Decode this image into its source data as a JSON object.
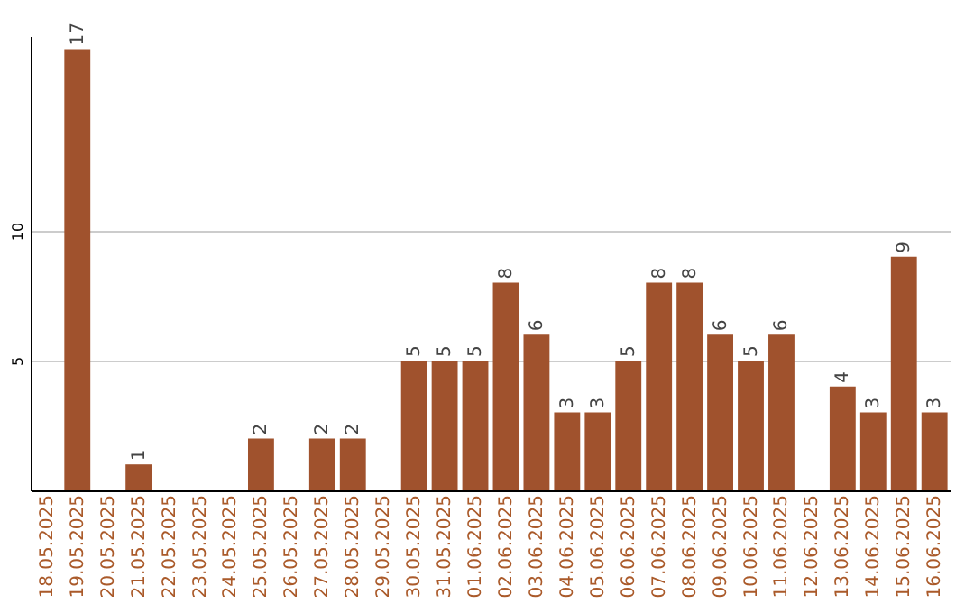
{
  "chart_data": {
    "type": "bar",
    "categories": [
      "18.05.2025",
      "19.05.2025",
      "20.05.2025",
      "21.05.2025",
      "22.05.2025",
      "23.05.2025",
      "24.05.2025",
      "25.05.2025",
      "26.05.2025",
      "27.05.2025",
      "28.05.2025",
      "29.05.2025",
      "30.05.2025",
      "31.05.2025",
      "01.06.2025",
      "02.06.2025",
      "03.06.2025",
      "04.06.2025",
      "05.06.2025",
      "06.06.2025",
      "07.06.2025",
      "08.06.2025",
      "09.06.2025",
      "10.06.2025",
      "11.06.2025",
      "12.06.2025",
      "13.06.2025",
      "14.06.2025",
      "15.06.2025",
      "16.06.2025"
    ],
    "values": [
      null,
      17,
      null,
      1,
      null,
      null,
      null,
      2,
      null,
      2,
      2,
      null,
      5,
      5,
      5,
      8,
      6,
      3,
      3,
      5,
      8,
      8,
      6,
      5,
      6,
      null,
      4,
      3,
      9,
      3
    ],
    "color": "#a0522d",
    "ylim": [
      0,
      17.5
    ],
    "yticks": [
      5,
      10
    ],
    "grid": "y",
    "data_labels": true
  }
}
